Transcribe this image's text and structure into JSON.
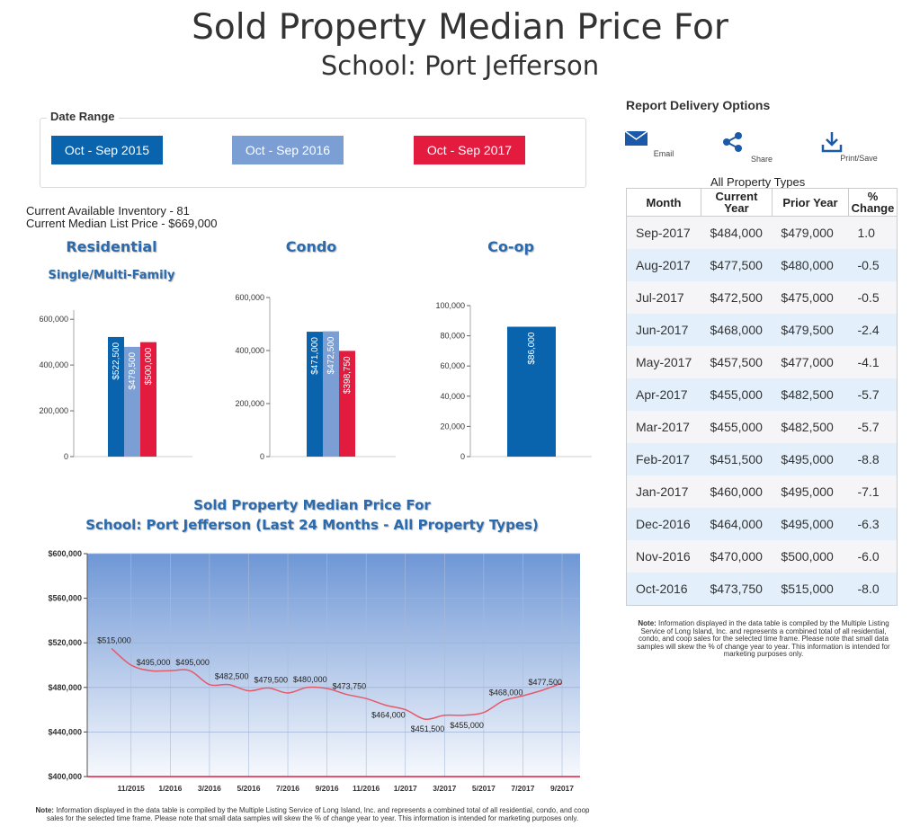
{
  "header": {
    "title_line1": "Sold Property Median Price For",
    "title_line2": "School: Port Jefferson"
  },
  "date_range": {
    "legend": "Date Range",
    "buttons": [
      {
        "label": "Oct - Sep 2015",
        "color": "#0a63ad"
      },
      {
        "label": "Oct - Sep 2016",
        "color": "#7b9fd4"
      },
      {
        "label": "Oct - Sep 2017",
        "color": "#e31b3f"
      }
    ]
  },
  "inventory": {
    "available": "Current Available Inventory - 81",
    "median_list": "Current Median List Price - $669,000"
  },
  "report_delivery": {
    "title": "Report Delivery Options",
    "items": [
      {
        "label": "Email",
        "icon": "email-icon"
      },
      {
        "label": "Share",
        "icon": "share-icon"
      },
      {
        "label": "Print/Save",
        "icon": "download-icon"
      }
    ]
  },
  "table": {
    "caption": "All Property Types",
    "headers": [
      "Month",
      "Current Year",
      "Prior Year",
      "% Change"
    ],
    "rows": [
      [
        "Sep-2017",
        "$484,000",
        "$479,000",
        "1.0"
      ],
      [
        "Aug-2017",
        "$477,500",
        "$480,000",
        "-0.5"
      ],
      [
        "Jul-2017",
        "$472,500",
        "$475,000",
        "-0.5"
      ],
      [
        "Jun-2017",
        "$468,000",
        "$479,500",
        "-2.4"
      ],
      [
        "May-2017",
        "$457,500",
        "$477,000",
        "-4.1"
      ],
      [
        "Apr-2017",
        "$455,000",
        "$482,500",
        "-5.7"
      ],
      [
        "Mar-2017",
        "$455,000",
        "$482,500",
        "-5.7"
      ],
      [
        "Feb-2017",
        "$451,500",
        "$495,000",
        "-8.8"
      ],
      [
        "Jan-2017",
        "$460,000",
        "$495,000",
        "-7.1"
      ],
      [
        "Dec-2016",
        "$464,000",
        "$495,000",
        "-6.3"
      ],
      [
        "Nov-2016",
        "$470,000",
        "$500,000",
        "-6.0"
      ],
      [
        "Oct-2016",
        "$473,750",
        "$515,000",
        "-8.0"
      ]
    ]
  },
  "notes": {
    "label": "Note:",
    "table_note": "Information displayed in the data table is compiled by the Multiple Listing Service of Long Island, Inc. and represents a combined total of all residential, condo, and coop sales for the selected time frame.  Please note that small data samples will skew the % of change year to year.  This information is intended for marketing purposes only.",
    "bottom_note": "Information displayed in the data table is compiled by the Multiple Listing Service of Long Island, Inc. and represents a combined total of all residential, condo, and coop sales for the selected time frame.  Please note that small data samples will skew the % of change year to year.  This information is intended for marketing purposes only."
  },
  "chart_data": [
    {
      "type": "bar",
      "title": "Residential",
      "subtitle": "Single/Multi-Family",
      "series": [
        {
          "name": "Oct - Sep 2015",
          "values": [
            522500
          ],
          "labels": [
            "$522,500"
          ],
          "color": "#0a63ad"
        },
        {
          "name": "Oct - Sep 2016",
          "values": [
            479500
          ],
          "labels": [
            "$479,500"
          ],
          "color": "#7b9fd4"
        },
        {
          "name": "Oct - Sep 2017",
          "values": [
            500000
          ],
          "labels": [
            "$500,000"
          ],
          "color": "#e31b3f"
        }
      ],
      "yticks": [
        "0",
        "200,000",
        "400,000",
        "600,000"
      ],
      "ylim": [
        0,
        640000
      ]
    },
    {
      "type": "bar",
      "title": "Condo",
      "subtitle": "",
      "series": [
        {
          "name": "Oct - Sep 2015",
          "values": [
            471000
          ],
          "labels": [
            "$471,000"
          ],
          "color": "#0a63ad"
        },
        {
          "name": "Oct - Sep 2016",
          "values": [
            472500
          ],
          "labels": [
            "$472,500"
          ],
          "color": "#7b9fd4"
        },
        {
          "name": "Oct - Sep 2017",
          "values": [
            398750
          ],
          "labels": [
            "$398,750"
          ],
          "color": "#e31b3f"
        }
      ],
      "yticks": [
        "0",
        "200,000",
        "400,000",
        "600,000"
      ],
      "ylim": [
        0,
        600000
      ]
    },
    {
      "type": "bar",
      "title": "Co-op",
      "subtitle": "",
      "series": [
        {
          "name": "Oct - Sep 2017",
          "values": [
            86000
          ],
          "labels": [
            "$86,000"
          ],
          "color": "#0a63ad"
        }
      ],
      "yticks": [
        "0",
        "20,000",
        "40,000",
        "60,000",
        "80,000",
        "100,000"
      ],
      "ylim": [
        0,
        100000
      ]
    },
    {
      "type": "line",
      "title": "Sold Property Median Price For",
      "subtitle": "School: Port Jefferson (Last 24 Months - All Property Types)",
      "x": [
        "10/2015",
        "11/2015",
        "12/2015",
        "1/2016",
        "2/2016",
        "3/2016",
        "4/2016",
        "5/2016",
        "6/2016",
        "7/2016",
        "8/2016",
        "9/2016",
        "10/2016",
        "11/2016",
        "12/2016",
        "1/2017",
        "2/2017",
        "3/2017",
        "4/2017",
        "5/2017",
        "6/2017",
        "7/2017",
        "8/2017",
        "9/2017"
      ],
      "xticks": [
        "11/2015",
        "1/2016",
        "3/2016",
        "5/2016",
        "7/2016",
        "9/2016",
        "11/2016",
        "1/2017",
        "3/2017",
        "5/2017",
        "7/2017",
        "9/2017"
      ],
      "y": [
        515000,
        500000,
        495000,
        495000,
        495000,
        482500,
        482500,
        477000,
        479500,
        475000,
        480000,
        479000,
        473750,
        470000,
        464000,
        460000,
        451500,
        455000,
        455000,
        457500,
        468000,
        472500,
        477500,
        484000
      ],
      "point_labels": [
        {
          "i": 0,
          "text": "$515,000"
        },
        {
          "i": 2,
          "text": "$495,000"
        },
        {
          "i": 4,
          "text": "$495,000"
        },
        {
          "i": 6,
          "text": "$482,500"
        },
        {
          "i": 8,
          "text": "$479,500"
        },
        {
          "i": 10,
          "text": "$480,000"
        },
        {
          "i": 12,
          "text": "$473,750"
        },
        {
          "i": 14,
          "text": "$464,000"
        },
        {
          "i": 16,
          "text": "$451,500"
        },
        {
          "i": 18,
          "text": "$455,000"
        },
        {
          "i": 20,
          "text": "$468,000"
        },
        {
          "i": 22,
          "text": "$477,500"
        }
      ],
      "yticks": [
        "$400,000",
        "$440,000",
        "$480,000",
        "$520,000",
        "$560,000",
        "$600,000"
      ],
      "ylim": [
        400000,
        600000
      ],
      "line_color": "#e55a6a",
      "grid": true
    }
  ]
}
